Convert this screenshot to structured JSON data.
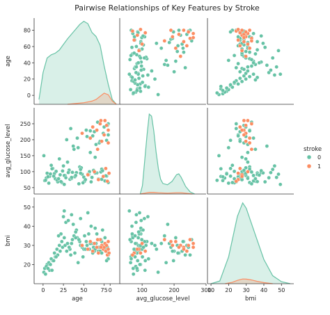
{
  "chart_data": {
    "type": "scatter",
    "title": "Pairwise Relationships of Key Features by Stroke",
    "variables": [
      {
        "key": "age",
        "label": "age",
        "lim": [
          -11,
          95
        ],
        "ticks": [
          0,
          20,
          40,
          60,
          80
        ],
        "xticks": [
          0,
          25,
          50,
          75
        ]
      },
      {
        "key": "avg_glucose_level",
        "label": "avg_glucose_level",
        "lim": [
          30,
          300
        ],
        "ticks": [
          50,
          100,
          150,
          200,
          250
        ],
        "xticks": [
          0,
          100,
          200,
          300
        ]
      },
      {
        "key": "bmi",
        "label": "bmi",
        "lim": [
          10,
          55
        ],
        "ticks": [
          20,
          30,
          40,
          50
        ],
        "xticks": [
          10,
          20,
          30,
          40,
          50
        ]
      }
    ],
    "diag_xlim": [
      [
        -11,
        95
      ],
      [
        -50,
        330
      ],
      [
        8,
        57
      ]
    ],
    "hue": {
      "name": "stroke",
      "levels": [
        "0",
        "1"
      ],
      "colors": [
        "#66c2a5",
        "#fc8d62"
      ]
    },
    "legend_position": "right",
    "kde": {
      "age": {
        "0": {
          "x": [
            -5,
            0,
            5,
            10,
            15,
            20,
            25,
            30,
            35,
            40,
            45,
            50,
            55,
            60,
            65,
            70,
            75,
            80,
            85,
            90
          ],
          "density": [
            0.0006,
            0.004,
            0.0058,
            0.0062,
            0.0064,
            0.0068,
            0.0075,
            0.0082,
            0.0088,
            0.0094,
            0.01,
            0.0104,
            0.0101,
            0.009,
            0.0085,
            0.0074,
            0.0048,
            0.0025,
            0.0006,
            0.0
          ]
        },
        "1": {
          "x": [
            30,
            40,
            50,
            55,
            60,
            65,
            70,
            75,
            80,
            85,
            90
          ],
          "density": [
            0.0,
            0.0001,
            0.0002,
            0.0003,
            0.0004,
            0.0006,
            0.001,
            0.0014,
            0.0012,
            0.0004,
            0.0
          ]
        }
      },
      "avg_glucose_level": {
        "0": {
          "x": [
            40,
            50,
            60,
            70,
            80,
            90,
            100,
            110,
            120,
            130,
            140,
            160,
            180,
            200,
            210,
            220,
            240,
            260,
            280
          ],
          "density": [
            0.0,
            0.002,
            0.008,
            0.014,
            0.019,
            0.0185,
            0.015,
            0.01,
            0.006,
            0.0035,
            0.0025,
            0.0022,
            0.003,
            0.0046,
            0.0048,
            0.004,
            0.0018,
            0.0005,
            0.0
          ]
        },
        "1": {
          "x": [
            40,
            60,
            80,
            100,
            120,
            160,
            200,
            220,
            240,
            270
          ],
          "density": [
            0.0,
            0.0002,
            0.0004,
            0.0004,
            0.0003,
            0.0002,
            0.0003,
            0.0003,
            0.0002,
            0.0
          ]
        }
      },
      "bmi": {
        "0": {
          "x": [
            10,
            15,
            20,
            25,
            28,
            30,
            35,
            40,
            45,
            50,
            55
          ],
          "density": [
            0.0,
            0.002,
            0.02,
            0.05,
            0.06,
            0.056,
            0.037,
            0.018,
            0.006,
            0.0015,
            0.0
          ]
        },
        "1": {
          "x": [
            18,
            22,
            25,
            28,
            30,
            33,
            36,
            40,
            45
          ],
          "density": [
            0.0,
            0.001,
            0.0025,
            0.0035,
            0.0034,
            0.0028,
            0.0018,
            0.0008,
            0.0
          ]
        }
      }
    },
    "density_max": [
      0.0108,
      0.0205,
      0.064
    ],
    "points": {
      "stroke_0": {
        "age": [
          2,
          5,
          8,
          12,
          15,
          18,
          21,
          24,
          27,
          30,
          33,
          36,
          39,
          42,
          45,
          48,
          51,
          54,
          57,
          60,
          63,
          66,
          69,
          72,
          75,
          78,
          80,
          1,
          4,
          7,
          10,
          14,
          17,
          20,
          23,
          26,
          29,
          32,
          35,
          38,
          41,
          44,
          47,
          50,
          53,
          56,
          59,
          62,
          65,
          68,
          71,
          74,
          77,
          80,
          3,
          9,
          16,
          22,
          28,
          34,
          40,
          46,
          52,
          58,
          64,
          70,
          76,
          79,
          13,
          25,
          37,
          49,
          61,
          73,
          6,
          19,
          31,
          43,
          55,
          67,
          80,
          11,
          35,
          58,
          72,
          46,
          26,
          64,
          40,
          78
        ],
        "avg_glucose_level": [
          72,
          95,
          85,
          110,
          78,
          68,
          90,
          102,
          88,
          130,
          76,
          98,
          84,
          205,
          115,
          92,
          70,
          210,
          100,
          82,
          225,
          96,
          190,
          108,
          240,
          86,
          215,
          150,
          80,
          64,
          120,
          94,
          74,
          140,
          66,
          88,
          200,
          105,
          79,
          170,
          97,
          62,
          112,
          83,
          230,
          91,
          68,
          104,
          185,
          77,
          99,
          220,
          87,
          250,
          73,
          93,
          101,
          69,
          81,
          235,
          89,
          107,
          75,
          160,
          96,
          195,
          71,
          245,
          86,
          118,
          180,
          65,
          212,
          103,
          84,
          78,
          97,
          175,
          92,
          255,
          66,
          109,
          82,
          228,
          76,
          95,
          60,
          145,
          88,
          198
        ],
        "bmi": [
          18,
          20,
          17,
          22,
          24,
          25,
          27,
          29,
          30,
          31,
          28,
          33,
          26,
          34,
          32,
          29,
          35,
          30,
          28,
          31,
          27,
          36,
          29,
          32,
          30,
          28,
          26,
          16,
          19,
          21,
          23,
          26,
          28,
          30,
          32,
          34,
          27,
          29,
          31,
          35,
          38,
          33,
          30,
          28,
          32,
          36,
          40,
          29,
          31,
          27,
          33,
          30,
          28,
          25,
          15,
          20,
          24,
          36,
          42,
          25,
          37,
          44,
          28,
          31,
          39,
          27,
          34,
          29,
          22,
          45,
          41,
          24,
          26,
          38,
          18,
          35,
          43,
          21,
          47,
          33,
          23,
          17,
          46,
          32,
          26,
          30,
          48,
          28,
          34,
          22
        ]
      },
      "stroke_1": {
        "age": [
          48,
          55,
          58,
          61,
          63,
          66,
          68,
          70,
          72,
          74,
          75,
          76,
          77,
          78,
          79,
          80,
          80,
          81,
          71,
          67
        ],
        "avg_glucose_level": [
          220,
          90,
          205,
          240,
          100,
          230,
          75,
          250,
          195,
          85,
          215,
          260,
          110,
          245,
          70,
          230,
          190,
          95,
          260,
          170
        ],
        "bmi": [
          30,
          28,
          32,
          27,
          31,
          29,
          26,
          33,
          30,
          28,
          29,
          31,
          27,
          30,
          25,
          28,
          32,
          26,
          29,
          33
        ]
      }
    }
  }
}
